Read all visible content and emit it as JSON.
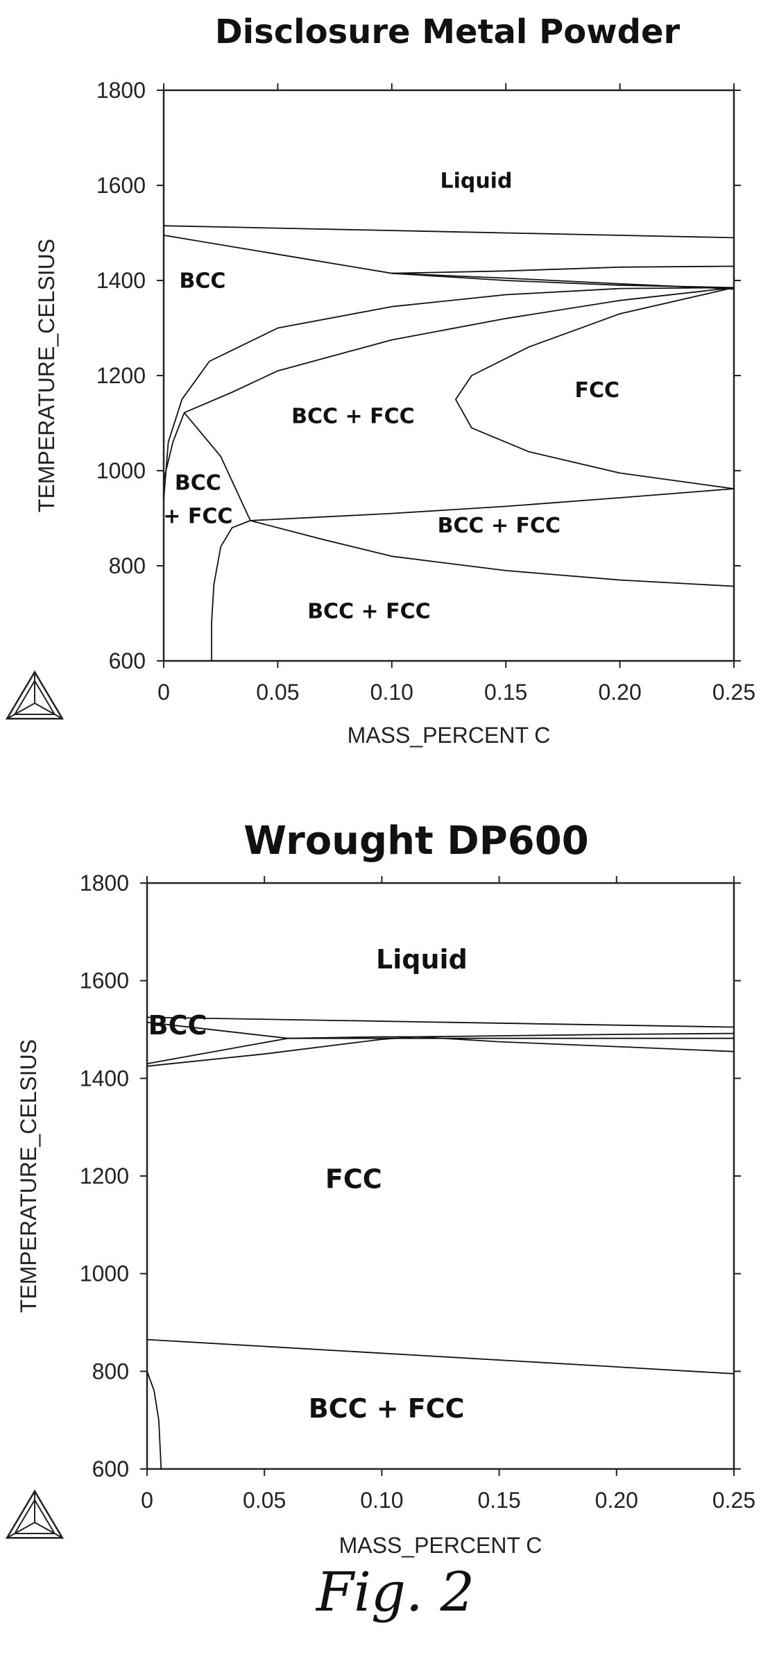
{
  "figure": {
    "caption": "Fig. 2"
  },
  "chart_data": [
    {
      "type": "line",
      "title": "Disclosure Metal Powder",
      "xlabel": "MASS_PERCENT C",
      "ylabel": "TEMPERATURE_CELSIUS",
      "xlim": [
        0,
        0.25
      ],
      "ylim": [
        600,
        1800
      ],
      "x_ticks": [
        0,
        0.05,
        0.1,
        0.15,
        0.2,
        0.25
      ],
      "x_tick_labels": [
        "0",
        "0.05",
        "0.10",
        "0.15",
        "0.20",
        "0.25"
      ],
      "y_ticks": [
        600,
        800,
        1000,
        1200,
        1400,
        1600,
        1800
      ],
      "y_tick_labels": [
        "600",
        "800",
        "1000",
        "1200",
        "1400",
        "1600",
        "1800"
      ],
      "grid": false,
      "series": [
        {
          "points": [
            [
              0,
              1515
            ],
            [
              0.25,
              1490
            ]
          ]
        },
        {
          "points": [
            [
              0,
              1495
            ],
            [
              0.05,
              1455
            ],
            [
              0.1,
              1415
            ],
            [
              0.15,
              1405
            ],
            [
              0.2,
              1393
            ],
            [
              0.25,
              1382
            ]
          ]
        },
        {
          "points": [
            [
              0.1,
              1415
            ],
            [
              0.15,
              1420
            ],
            [
              0.2,
              1428
            ],
            [
              0.25,
              1430
            ]
          ]
        },
        {
          "points": [
            [
              0.1,
              1415
            ],
            [
              0.15,
              1400
            ],
            [
              0.2,
              1390
            ],
            [
              0.25,
              1385
            ]
          ]
        },
        {
          "points": [
            [
              0,
              940
            ],
            [
              0.002,
              1060
            ],
            [
              0.008,
              1150
            ],
            [
              0.02,
              1230
            ],
            [
              0.05,
              1300
            ],
            [
              0.1,
              1345
            ],
            [
              0.15,
              1370
            ],
            [
              0.2,
              1383
            ],
            [
              0.25,
              1385
            ]
          ]
        },
        {
          "points": [
            [
              0.009,
              1122
            ],
            [
              0.03,
              1165
            ],
            [
              0.05,
              1210
            ],
            [
              0.1,
              1275
            ],
            [
              0.15,
              1320
            ],
            [
              0.2,
              1358
            ],
            [
              0.25,
              1385
            ]
          ]
        },
        {
          "points": [
            [
              0.25,
              1385
            ],
            [
              0.2,
              1330
            ],
            [
              0.16,
              1260
            ],
            [
              0.135,
              1200
            ],
            [
              0.128,
              1150
            ],
            [
              0.135,
              1090
            ],
            [
              0.16,
              1040
            ],
            [
              0.2,
              995
            ],
            [
              0.25,
              962
            ]
          ]
        },
        {
          "points": [
            [
              0.009,
              1122
            ],
            [
              0.025,
              1030
            ],
            [
              0.038,
              895
            ]
          ]
        },
        {
          "points": [
            [
              0,
              980
            ],
            [
              0.004,
              1060
            ],
            [
              0.009,
              1122
            ]
          ]
        },
        {
          "points": [
            [
              0.038,
              895
            ],
            [
              0.1,
              910
            ],
            [
              0.15,
              925
            ],
            [
              0.2,
              943
            ],
            [
              0.25,
              962
            ]
          ]
        },
        {
          "points": [
            [
              0.038,
              895
            ],
            [
              0.07,
              855
            ],
            [
              0.1,
              820
            ],
            [
              0.15,
              790
            ],
            [
              0.2,
              770
            ],
            [
              0.25,
              757
            ]
          ]
        },
        {
          "points": [
            [
              0.038,
              895
            ],
            [
              0.03,
              880
            ],
            [
              0.025,
              840
            ],
            [
              0.022,
              760
            ],
            [
              0.021,
              680
            ],
            [
              0.021,
              600
            ]
          ]
        }
      ],
      "region_labels": [
        {
          "text": "Liquid",
          "x": 0.137,
          "y": 1595
        },
        {
          "text": "BCC",
          "x": 0.017,
          "y": 1385
        },
        {
          "text": "FCC",
          "x": 0.19,
          "y": 1155
        },
        {
          "text": "BCC + FCC",
          "x": 0.083,
          "y": 1100
        },
        {
          "text": "BCC",
          "x": 0.015,
          "y": 960
        },
        {
          "text": "+ FCC",
          "x": 0.015,
          "y": 890
        },
        {
          "text": "BCC + FCC",
          "x": 0.147,
          "y": 870
        },
        {
          "text": "BCC + FCC",
          "x": 0.09,
          "y": 690
        }
      ]
    },
    {
      "type": "line",
      "title": "Wrought DP600",
      "xlabel": "MASS_PERCENT C",
      "ylabel": "TEMPERATURE_CELSIUS",
      "xlim": [
        0,
        0.25
      ],
      "ylim": [
        600,
        1800
      ],
      "x_ticks": [
        0,
        0.05,
        0.1,
        0.15,
        0.2,
        0.25
      ],
      "x_tick_labels": [
        "0",
        "0.05",
        "0.10",
        "0.15",
        "0.20",
        "0.25"
      ],
      "y_ticks": [
        600,
        800,
        1000,
        1200,
        1400,
        1600,
        1800
      ],
      "y_tick_labels": [
        "600",
        "800",
        "1000",
        "1200",
        "1400",
        "1600",
        "1800"
      ],
      "grid": false,
      "series": [
        {
          "points": [
            [
              0,
              1525
            ],
            [
              0.25,
              1505
            ]
          ]
        },
        {
          "points": [
            [
              0,
              1515
            ],
            [
              0.06,
              1482
            ]
          ]
        },
        {
          "points": [
            [
              0,
              1430
            ],
            [
              0.06,
              1482
            ]
          ]
        },
        {
          "points": [
            [
              0.06,
              1482
            ],
            [
              0.25,
              1482
            ]
          ]
        },
        {
          "points": [
            [
              0,
              1425
            ],
            [
              0.05,
              1450
            ],
            [
              0.1,
              1480
            ],
            [
              0.115,
              1485
            ],
            [
              0.15,
              1475
            ],
            [
              0.2,
              1465
            ],
            [
              0.25,
              1455
            ]
          ]
        },
        {
          "points": [
            [
              0.06,
              1482
            ],
            [
              0.1,
              1485
            ],
            [
              0.115,
              1485
            ],
            [
              0.2,
              1490
            ],
            [
              0.25,
              1492
            ]
          ]
        },
        {
          "points": [
            [
              0,
              865
            ],
            [
              0.25,
              795
            ]
          ]
        },
        {
          "points": [
            [
              0,
              800
            ],
            [
              0.003,
              760
            ],
            [
              0.005,
              700
            ],
            [
              0.006,
              600
            ]
          ]
        }
      ],
      "region_labels": [
        {
          "text": "Liquid",
          "x": 0.117,
          "y": 1625
        },
        {
          "text": "BCC",
          "x": 0.013,
          "y": 1490
        },
        {
          "text": "FCC",
          "x": 0.088,
          "y": 1175
        },
        {
          "text": "BCC + FCC",
          "x": 0.102,
          "y": 705
        }
      ]
    }
  ]
}
